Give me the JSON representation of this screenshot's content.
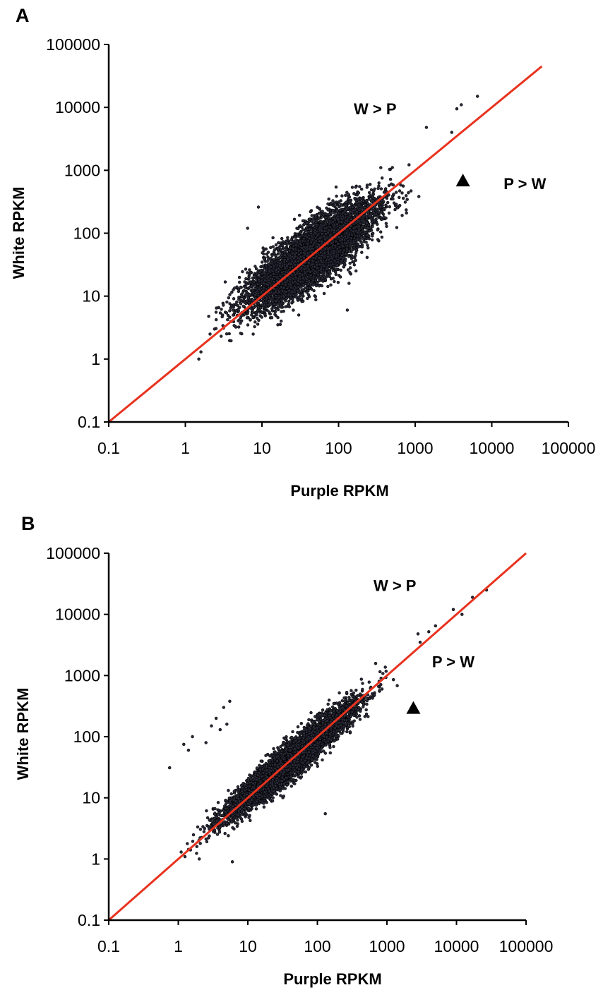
{
  "chart_data": [
    {
      "panel": "A",
      "type": "scatter",
      "log_scale": {
        "x": true,
        "y": true
      },
      "xlabel": "Purple RPKM",
      "ylabel": "White RPKM",
      "xlim": [
        0.1,
        100000
      ],
      "ylim": [
        0.1,
        100000
      ],
      "x_tick_labels": [
        "0.1",
        "1",
        "10",
        "100",
        "1000",
        "10000",
        "100000"
      ],
      "y_tick_labels": [
        "0.1",
        "1",
        "10",
        "100",
        "1000",
        "10000",
        "100000"
      ],
      "grid": false,
      "annotations": [
        {
          "text": "W > P",
          "x": 300,
          "y": 9500
        },
        {
          "text": "P > W",
          "x": 27000,
          "y": 620
        }
      ],
      "triangle_marker": {
        "x": 4200,
        "y": 700
      },
      "reference_line": {
        "color": "#e8321e",
        "from": [
          0.1,
          0.1
        ],
        "to": [
          45000,
          45000
        ]
      },
      "point_cloud": {
        "count": 6500,
        "center": [
          45,
          45
        ],
        "log_spread_along": 0.55,
        "log_spread_across": 0.17,
        "x_range": [
          1.5,
          7000
        ],
        "y_range": [
          1,
          15000
        ]
      },
      "extreme_points": [
        [
          1.5,
          1.0
        ],
        [
          1.6,
          1.3
        ],
        [
          2.1,
          2.5
        ],
        [
          2.4,
          3.0
        ],
        [
          6.5,
          120
        ],
        [
          9,
          260
        ],
        [
          130,
          6
        ],
        [
          1400,
          4800
        ],
        [
          3500,
          9500
        ],
        [
          4000,
          11000
        ],
        [
          6500,
          15000
        ],
        [
          3000,
          4000
        ]
      ]
    },
    {
      "panel": "B",
      "type": "scatter",
      "log_scale": {
        "x": true,
        "y": true
      },
      "xlabel": "Purple RPKM",
      "ylabel": "White RPKM",
      "xlim": [
        0.1,
        100000
      ],
      "ylim": [
        0.1,
        100000
      ],
      "x_tick_labels": [
        "0.1",
        "1",
        "10",
        "100",
        "1000",
        "10000",
        "100000"
      ],
      "y_tick_labels": [
        "0.1",
        "1",
        "10",
        "100",
        "1000",
        "10000",
        "100000"
      ],
      "grid": false,
      "annotations": [
        {
          "text": "W > P",
          "x": 1300,
          "y": 30000
        },
        {
          "text": "P > W",
          "x": 9000,
          "y": 1700
        }
      ],
      "triangle_marker": {
        "x": 2400,
        "y": 300
      },
      "reference_line": {
        "color": "#e8321e",
        "from": [
          0.1,
          0.1
        ],
        "to": [
          100000,
          100000
        ]
      },
      "point_cloud": {
        "count": 6500,
        "center": [
          40,
          40
        ],
        "log_spread_along": 0.6,
        "log_spread_across": 0.1,
        "x_range": [
          1.0,
          30000
        ],
        "y_range": [
          0.9,
          27000
        ]
      },
      "extreme_points": [
        [
          0.75,
          31
        ],
        [
          1.2,
          75
        ],
        [
          1.4,
          60
        ],
        [
          1.6,
          100
        ],
        [
          2.5,
          80
        ],
        [
          3,
          150
        ],
        [
          3.5,
          200
        ],
        [
          4,
          130
        ],
        [
          5,
          160
        ],
        [
          5.5,
          380
        ],
        [
          4.5,
          300
        ],
        [
          6,
          0.9
        ],
        [
          1.1,
          1.3
        ],
        [
          2,
          1.0
        ],
        [
          130,
          5.5
        ],
        [
          2800,
          4800
        ],
        [
          3000,
          3500
        ],
        [
          9000,
          12000
        ],
        [
          12000,
          10000
        ],
        [
          17000,
          19000
        ],
        [
          27000,
          25000
        ],
        [
          5000,
          6500
        ],
        [
          4000,
          5200
        ]
      ]
    }
  ],
  "colors": {
    "reference_line": "#e8321e",
    "point_fill": "#2b2b3a",
    "point_stroke": "#000000",
    "axis": "#000000"
  }
}
